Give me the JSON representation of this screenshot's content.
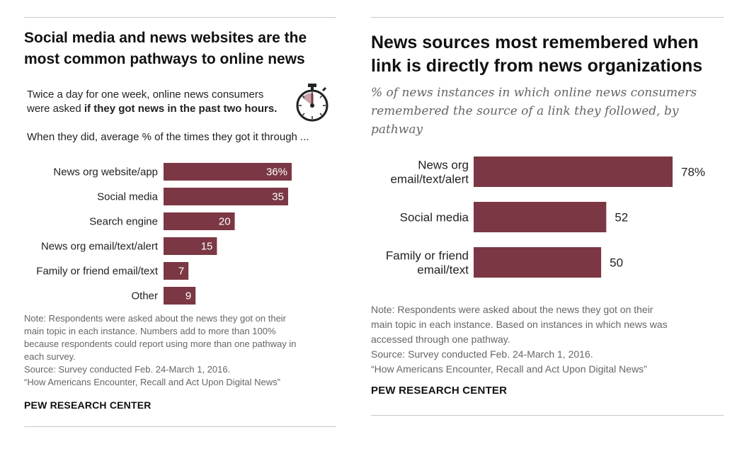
{
  "colors": {
    "bar": "#7b3844",
    "bar_label_inside": "#ffffff",
    "text": "#222222",
    "note": "#666666",
    "rule": "#c8c8c8"
  },
  "left": {
    "title_line1": "Social media and news websites are the",
    "title_line2": "most common pathways to online news",
    "intro_line1": "Twice a day for one week, online news consumers",
    "intro_line2_plain": "were asked ",
    "intro_line2_bold": "if they got news in the past two hours.",
    "lead": "When they did, average % of the times they got it through ...",
    "icon": "stopwatch-icon",
    "note_lines": [
      "Note: Respondents were asked about the news they got on their",
      "main topic in each instance. Numbers add to more than 100%",
      "because respondents could report using more than one pathway in",
      "each survey.",
      "Source: Survey conducted Feb. 24-March 1, 2016.",
      "“How Americans Encounter, Recall and Act Upon Digital News”"
    ],
    "brand": "PEW RESEARCH CENTER"
  },
  "right": {
    "title_line1": "News sources most remembered when",
    "title_line2": "link is directly from news organizations",
    "subtitle_lines": [
      "% of news instances in which online news consumers",
      "remembered the source of a link they followed, by",
      "pathway"
    ],
    "note_lines": [
      "Note: Respondents were asked about the news they got on their",
      "main topic in each instance. Based on instances in which news was",
      "accessed through one pathway.",
      "Source: Survey conducted Feb. 24-March 1, 2016.",
      "“How Americans Encounter, Recall and Act Upon Digital News”"
    ],
    "brand": "PEW RESEARCH CENTER"
  },
  "chart_data": [
    {
      "type": "bar",
      "orientation": "horizontal",
      "categories": [
        "News org website/app",
        "Social media",
        "Search engine",
        "News org email/text/alert",
        "Family or friend email/text",
        "Other"
      ],
      "values": [
        36,
        35,
        20,
        15,
        7,
        9
      ],
      "value_labels": [
        "36%",
        "35",
        "20",
        "15",
        "7",
        "9"
      ],
      "xlim": [
        0,
        40
      ]
    },
    {
      "type": "bar",
      "orientation": "horizontal",
      "categories": [
        [
          "News org",
          "email/text/alert"
        ],
        [
          "Social media"
        ],
        [
          "Family or friend",
          "email/text"
        ]
      ],
      "values": [
        78,
        52,
        50
      ],
      "value_labels": [
        "78%",
        "52",
        "50"
      ],
      "xlim": [
        0,
        100
      ]
    }
  ]
}
